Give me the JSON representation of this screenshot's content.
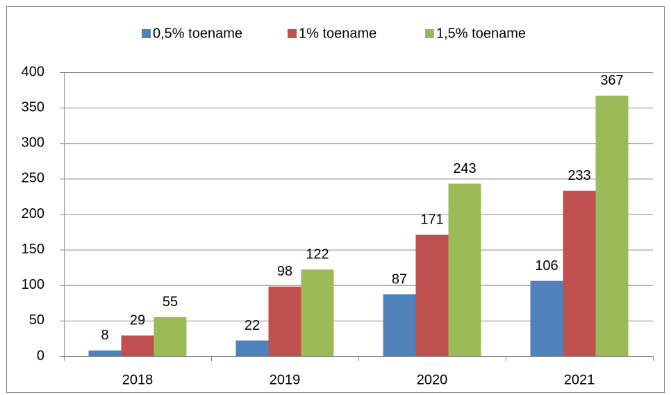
{
  "chart_data": {
    "type": "bar",
    "categories": [
      "2018",
      "2019",
      "2020",
      "2021"
    ],
    "series": [
      {
        "name": "0,5% toename",
        "color": "#4f81bd",
        "values": [
          8,
          22,
          87,
          106
        ]
      },
      {
        "name": "1% toename",
        "color": "#c0504d",
        "values": [
          29,
          98,
          171,
          233
        ]
      },
      {
        "name": "1,5% toename",
        "color": "#9bbb59",
        "values": [
          55,
          122,
          243,
          367
        ]
      }
    ],
    "ylim": [
      0,
      400
    ],
    "yticks": [
      0,
      50,
      100,
      150,
      200,
      250,
      300,
      350,
      400
    ],
    "grid": true,
    "legend": "top"
  }
}
